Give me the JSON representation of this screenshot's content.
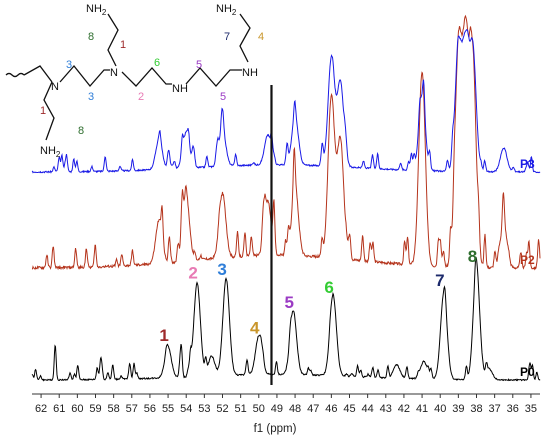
{
  "chart_data": {
    "type": "line",
    "title": "",
    "xlabel": "f1 (ppm)",
    "ylabel": "",
    "x_reversed": true,
    "xlim": [
      62.5,
      34.5
    ],
    "x_ticks": [
      "62",
      "61",
      "60",
      "59",
      "58",
      "57",
      "56",
      "55",
      "54",
      "53",
      "52",
      "51",
      "50",
      "49",
      "48",
      "47",
      "46",
      "45",
      "44",
      "43",
      "42",
      "41",
      "40",
      "39",
      "38",
      "37",
      "36",
      "35"
    ],
    "grid": false,
    "legend": "none",
    "series": [
      {
        "name": "P0",
        "color": "#000000",
        "peaks": [
          [
            55.0,
            0.28
          ],
          [
            53.4,
            0.85
          ],
          [
            52.6,
            0.18
          ],
          [
            51.8,
            0.88
          ],
          [
            50.0,
            0.35
          ],
          [
            48.1,
            0.58
          ],
          [
            45.9,
            0.72
          ],
          [
            42.4,
            0.12
          ],
          [
            40.9,
            0.16
          ],
          [
            39.8,
            0.78
          ],
          [
            38.0,
            1.0
          ],
          [
            37.3,
            0.1
          ]
        ],
        "labels": [
          {
            "text": "1",
            "ppm": 55.0,
            "color": "#9e2a2b"
          },
          {
            "text": "2",
            "ppm": 53.4,
            "color": "#e87ab4"
          },
          {
            "text": "3",
            "ppm": 51.8,
            "color": "#2f7ed8"
          },
          {
            "text": "4",
            "ppm": 50.0,
            "color": "#c9962b"
          },
          {
            "text": "5",
            "ppm": 48.1,
            "color": "#9b3bc4"
          },
          {
            "text": "6",
            "ppm": 45.9,
            "color": "#33cc33"
          },
          {
            "text": "7",
            "ppm": 39.8,
            "color": "#1c2a6b"
          },
          {
            "text": "8",
            "ppm": 38.0,
            "color": "#2e6e2e"
          }
        ]
      },
      {
        "name": "P2",
        "color": "#b5341c",
        "peaks": [
          [
            55.5,
            0.2
          ],
          [
            54.0,
            0.3
          ],
          [
            52.0,
            0.3
          ],
          [
            49.5,
            0.25
          ],
          [
            48.0,
            0.32
          ],
          [
            46.0,
            0.75
          ],
          [
            45.5,
            0.55
          ],
          [
            41.0,
            0.9
          ],
          [
            39.0,
            1.0
          ],
          [
            38.6,
            1.0
          ],
          [
            38.2,
            0.95
          ],
          [
            36.5,
            0.2
          ]
        ]
      },
      {
        "name": "P3",
        "color": "#1a1ae6",
        "peaks": [
          [
            55.5,
            0.25
          ],
          [
            54.0,
            0.3
          ],
          [
            52.0,
            0.3
          ],
          [
            49.5,
            0.25
          ],
          [
            48.0,
            0.4
          ],
          [
            46.0,
            0.9
          ],
          [
            45.5,
            0.7
          ],
          [
            41.0,
            0.6
          ],
          [
            39.0,
            1.0
          ],
          [
            38.6,
            1.0
          ],
          [
            38.2,
            1.0
          ],
          [
            36.5,
            0.2
          ]
        ]
      }
    ],
    "vertical_line_ppm": 49.3
  },
  "structure": {
    "amine_primary": "NH",
    "amine_subscript": "2",
    "amine_secondary": "NH",
    "nitrogen": "N",
    "numbers": [
      {
        "text": "8",
        "color": "#2e6e2e"
      },
      {
        "text": "1",
        "color": "#9e2a2b"
      },
      {
        "text": "3",
        "color": "#2f7ed8"
      },
      {
        "text": "3",
        "color": "#2f7ed8"
      },
      {
        "text": "2",
        "color": "#e87ab4"
      },
      {
        "text": "6",
        "color": "#33cc33"
      },
      {
        "text": "5",
        "color": "#9b3bc4"
      },
      {
        "text": "5",
        "color": "#9b3bc4"
      },
      {
        "text": "7",
        "color": "#1c2a6b"
      },
      {
        "text": "4",
        "color": "#c9962b"
      },
      {
        "text": "1",
        "color": "#9e2a2b"
      },
      {
        "text": "8",
        "color": "#2e6e2e"
      }
    ]
  }
}
